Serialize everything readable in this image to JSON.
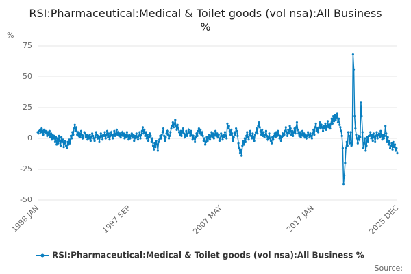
{
  "chart_data": {
    "type": "line",
    "title": "RSI:Pharmaceutical:Medical & Toilet goods (vol nsa):All Business %",
    "y_label": "%",
    "source": "Source:",
    "grid": true,
    "ylim": [
      -50,
      75
    ],
    "yticks": [
      -50,
      -25,
      0,
      25,
      50,
      75
    ],
    "categories": [
      "1988 JAN",
      null,
      null,
      null,
      null,
      null,
      null,
      null,
      null,
      null,
      null,
      null,
      null,
      null,
      null,
      null,
      null,
      null,
      null,
      null,
      null,
      null,
      null,
      null,
      null,
      null,
      null,
      null,
      null,
      null,
      null,
      null,
      null,
      null,
      null,
      null,
      null,
      null,
      null,
      null,
      null,
      null,
      null,
      null,
      null,
      null,
      null,
      null,
      null,
      null,
      null,
      null,
      null,
      null,
      null,
      null,
      null,
      null,
      null,
      null,
      null,
      null,
      null,
      null,
      null,
      null,
      null,
      null,
      null,
      null,
      null,
      null,
      null,
      null,
      null,
      null,
      null,
      null,
      null,
      null,
      null,
      null,
      null,
      null,
      null,
      null,
      null,
      null,
      null,
      null,
      null,
      null,
      null,
      null,
      null,
      null,
      null,
      null,
      null,
      null,
      null,
      null,
      null,
      null,
      null,
      null,
      null,
      null,
      null,
      null,
      null,
      null,
      null,
      null,
      null,
      null,
      "1997 SEP",
      null,
      null,
      null,
      null,
      null,
      null,
      null,
      null,
      null,
      null,
      null,
      null,
      null,
      null,
      null,
      null,
      null,
      null,
      null,
      null,
      null,
      null,
      null,
      null,
      null,
      null,
      null,
      null,
      null,
      null,
      null,
      null,
      null,
      null,
      null,
      null,
      null,
      null,
      null,
      null,
      null,
      null,
      null,
      null,
      null,
      null,
      null,
      null,
      null,
      null,
      null,
      null,
      null,
      null,
      null,
      null,
      null,
      null,
      null,
      null,
      null,
      null,
      null,
      null,
      null,
      null,
      null,
      null,
      null,
      null,
      null,
      null,
      null,
      null,
      null,
      null,
      null,
      null,
      null,
      null,
      null,
      null,
      null,
      null,
      null,
      null,
      null,
      null,
      null,
      null,
      null,
      null,
      null,
      null,
      null,
      null,
      null,
      null,
      null,
      null,
      null,
      null,
      null,
      null,
      null,
      null,
      null,
      null,
      null,
      null,
      null,
      null,
      null,
      null,
      null,
      "2007 MAY",
      null,
      null,
      null,
      null,
      null,
      null,
      null,
      null,
      null,
      null,
      null,
      null,
      null,
      null,
      null,
      null,
      null,
      null,
      null,
      null,
      null,
      null,
      null,
      null,
      null,
      null,
      null,
      null,
      null,
      null,
      null,
      null,
      null,
      null,
      null,
      null,
      null,
      null,
      null,
      null,
      null,
      null,
      null,
      null,
      null,
      null,
      null,
      null,
      null,
      null,
      null,
      null,
      null,
      null,
      null,
      null,
      null,
      null,
      null,
      null,
      null,
      null,
      null,
      null,
      null,
      null,
      null,
      null,
      null,
      null,
      null,
      null,
      null,
      null,
      null,
      null,
      null,
      null,
      null,
      null,
      null,
      null,
      null,
      null,
      null,
      null,
      null,
      null,
      null,
      null,
      null,
      null,
      null,
      null,
      null,
      null,
      null,
      null,
      null,
      null,
      null,
      null,
      null,
      null,
      null,
      null,
      null,
      null,
      null,
      null,
      null,
      null,
      null,
      null,
      null,
      "2017 JAN",
      null,
      null,
      null,
      null,
      null,
      null,
      null,
      null,
      null,
      null,
      null,
      null,
      null,
      null,
      null,
      null,
      null,
      null,
      null,
      null,
      null,
      null,
      null,
      null,
      null,
      null,
      null,
      null,
      null,
      null,
      null,
      null,
      null,
      null,
      null,
      null,
      null,
      null,
      null,
      null,
      null,
      null,
      null,
      null,
      null,
      null,
      null,
      null,
      null,
      null,
      null,
      null,
      null,
      null,
      null,
      null,
      null,
      null,
      null,
      null,
      null,
      null,
      null,
      null,
      null,
      null,
      null,
      null,
      null,
      null,
      null,
      null,
      null,
      null,
      null,
      null,
      null,
      null,
      null,
      null,
      null,
      null,
      null,
      null,
      null,
      null,
      null,
      null,
      null,
      null,
      null,
      null,
      null,
      null,
      null,
      null,
      null,
      null,
      null,
      null,
      null,
      null,
      null,
      null,
      null,
      null,
      "2025 DEC"
    ],
    "series": [
      {
        "name": "RSI:Pharmaceutical:Medical & Toilet goods (vol nsa):All Business %",
        "color": "#0a7fc0",
        "values": [
          5,
          4,
          6,
          7,
          5,
          8,
          6,
          3,
          7,
          5,
          6,
          4,
          2,
          5,
          3,
          6,
          1,
          4,
          -1,
          3,
          0,
          2,
          -3,
          1,
          -5,
          0,
          -4,
          2,
          -2,
          -6,
          1,
          -3,
          -1,
          -7,
          -4,
          -2,
          -6,
          -8,
          -3,
          -5,
          -1,
          -4,
          2,
          0,
          5,
          3,
          8,
          11,
          6,
          9,
          3,
          5,
          2,
          4,
          1,
          6,
          3,
          0,
          2,
          5,
          4,
          1,
          3,
          -1,
          2,
          0,
          3,
          -2,
          1,
          4,
          2,
          0,
          -2,
          1,
          5,
          3,
          0,
          2,
          -3,
          1,
          4,
          2,
          -1,
          3,
          2,
          5,
          0,
          3,
          6,
          1,
          4,
          -1,
          2,
          5,
          3,
          0,
          3,
          6,
          2,
          4,
          7,
          3,
          5,
          2,
          4,
          1,
          3,
          5,
          2,
          4,
          0,
          3,
          1,
          5,
          2,
          -1,
          3,
          0,
          2,
          4,
          1,
          3,
          -2,
          2,
          0,
          4,
          1,
          -1,
          2,
          5,
          0,
          3,
          6,
          9,
          4,
          7,
          2,
          5,
          0,
          3,
          -2,
          1,
          4,
          2,
          -3,
          0,
          -6,
          -9,
          -4,
          -7,
          -2,
          -5,
          -10,
          -3,
          -1,
          2,
          0,
          3,
          5,
          8,
          2,
          -2,
          1,
          4,
          6,
          3,
          0,
          2,
          5,
          8,
          10,
          13,
          9,
          12,
          15,
          10,
          7,
          11,
          8,
          5,
          3,
          6,
          2,
          5,
          8,
          4,
          1,
          3,
          6,
          2,
          4,
          7,
          5,
          2,
          6,
          3,
          -1,
          2,
          0,
          -3,
          1,
          4,
          2,
          6,
          8,
          4,
          7,
          3,
          5,
          2,
          -2,
          0,
          -5,
          -3,
          1,
          -2,
          0,
          3,
          -1,
          2,
          5,
          1,
          4,
          0,
          3,
          6,
          2,
          4,
          1,
          3,
          -2,
          0,
          4,
          2,
          -1,
          3,
          1,
          5,
          2,
          0,
          12,
          8,
          10,
          6,
          3,
          7,
          4,
          -2,
          1,
          5,
          3,
          8,
          6,
          2,
          -4,
          -8,
          -12,
          -9,
          -14,
          -6,
          -2,
          -5,
          0,
          -3,
          2,
          5,
          1,
          -1,
          3,
          6,
          2,
          0,
          4,
          1,
          -2,
          3,
          5,
          8,
          4,
          10,
          13,
          9,
          6,
          3,
          7,
          2,
          5,
          1,
          3,
          6,
          2,
          -1,
          1,
          4,
          0,
          -2,
          -4,
          1,
          -1,
          2,
          4,
          1,
          5,
          2,
          6,
          3,
          0,
          2,
          -2,
          1,
          4,
          2,
          3,
          6,
          9,
          5,
          2,
          7,
          4,
          10,
          8,
          3,
          6,
          2,
          5,
          8,
          4,
          9,
          13,
          7,
          4,
          2,
          5,
          1,
          3,
          6,
          2,
          4,
          1,
          3,
          0,
          2,
          5,
          3,
          1,
          4,
          2,
          0,
          4,
          7,
          3,
          9,
          12,
          6,
          8,
          5,
          9,
          13,
          8,
          11,
          9,
          6,
          10,
          8,
          12,
          7,
          10,
          14,
          9,
          11,
          8,
          12,
          16,
          12,
          18,
          14,
          19,
          15,
          17,
          20,
          13,
          16,
          11,
          9,
          6,
          2,
          -8,
          -37,
          -30,
          -20,
          -8,
          -3,
          -6,
          5,
          2,
          -4,
          5,
          -6,
          -5,
          68,
          56,
          18,
          8,
          3,
          0,
          -4,
          2,
          -1,
          1,
          29,
          18,
          5,
          -8,
          -4,
          0,
          -10,
          -6,
          1,
          -3,
          2,
          2,
          5,
          0,
          3,
          -2,
          4,
          1,
          -3,
          2,
          5,
          0,
          3,
          4,
          1,
          6,
          2,
          -1,
          3,
          0,
          2,
          10,
          4,
          -3,
          1,
          -5,
          -2,
          -8,
          -6,
          -4,
          -9,
          -3,
          -7,
          -5,
          -10,
          -8,
          -12
        ]
      }
    ]
  }
}
